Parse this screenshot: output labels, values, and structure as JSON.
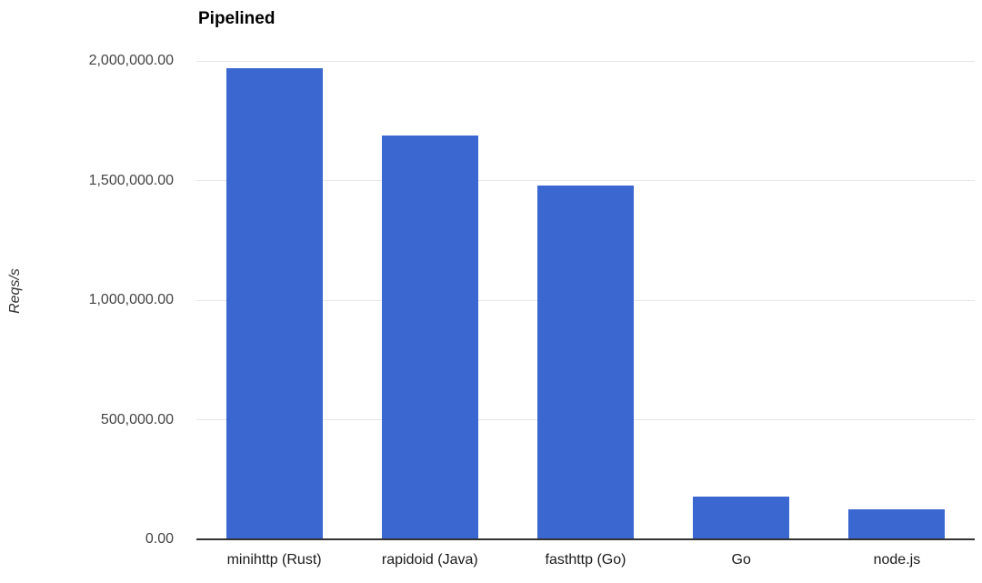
{
  "chart_data": {
    "type": "bar",
    "title": "Pipelined",
    "xlabel": "",
    "ylabel": "Reqs/s",
    "categories": [
      "minihttp (Rust)",
      "rapidoid (Java)",
      "fasthttp (Go)",
      "Go",
      "node.js"
    ],
    "values": [
      1970000,
      1690000,
      1480000,
      180000,
      127000
    ],
    "ylim": [
      0,
      2000000
    ],
    "ytick_interval": 500000,
    "ytick_labels": [
      "0.00",
      "500,000.00",
      "1,000,000.00",
      "1,500,000.00",
      "2,000,000.00"
    ],
    "grid": true,
    "legend_position": "none",
    "bar_color": "#3b67d0",
    "colors": {
      "background": "#ffffff",
      "gridline": "#e6e6e6",
      "axis_line": "#333333",
      "tick_label": "#444444",
      "category_label": "#1a1a1a",
      "title": "#000000",
      "y_axis_title": "#333333"
    }
  }
}
